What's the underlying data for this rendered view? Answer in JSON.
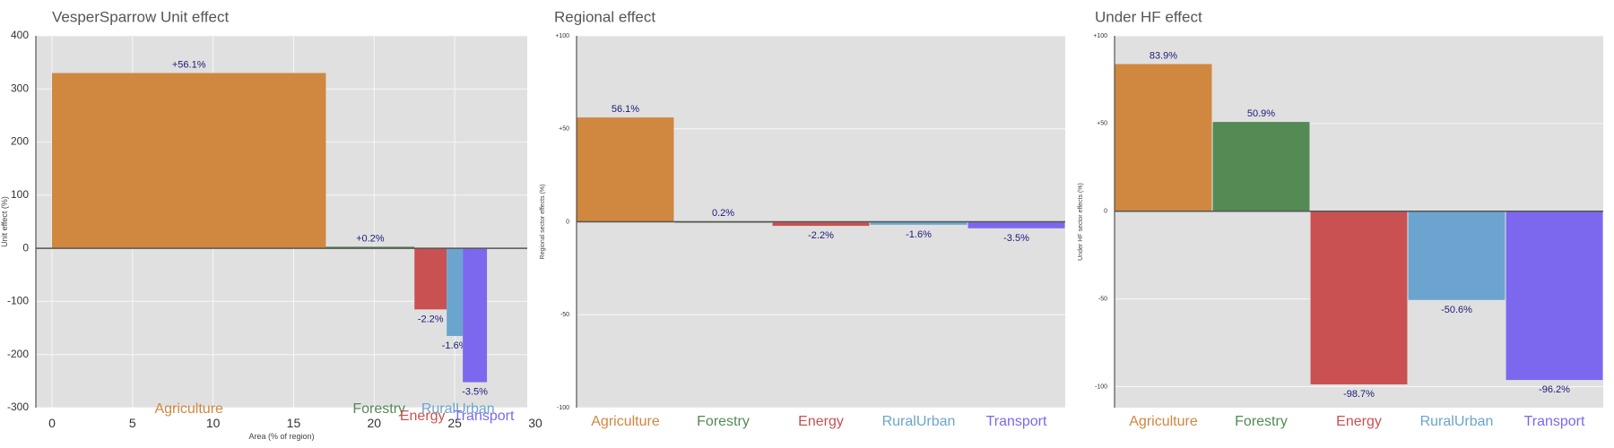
{
  "colors": {
    "Agriculture": "#D0873F",
    "Forestry": "#548A54",
    "Energy": "#C95151",
    "RuralUrban": "#6BA5CF",
    "Transport": "#7B68EE",
    "panel": "#E0E0E0",
    "grid": "#F7F7F7",
    "zero_line": "#555555"
  },
  "chart_data": [
    {
      "type": "bar",
      "title": "VesperSparrow Unit effect",
      "xlabel": "Area (% of region)",
      "ylabel": "Unit effect (%)",
      "xlim": [
        -1,
        29.5
      ],
      "ylim": [
        -300,
        400
      ],
      "xticks": [
        0,
        5,
        10,
        15,
        20,
        25,
        30
      ],
      "yticks": [
        -300,
        -200,
        -100,
        0,
        100,
        200,
        300,
        400
      ],
      "categories": [
        "Agriculture",
        "Forestry",
        "Energy",
        "RuralUrban",
        "Transport"
      ],
      "bars": [
        {
          "category": "Agriculture",
          "x_start": 0,
          "x_end": 17,
          "value": 330,
          "label": "+56.1%"
        },
        {
          "category": "Forestry",
          "x_start": 17,
          "x_end": 22.5,
          "value": 3,
          "label": "+0.2%"
        },
        {
          "category": "Energy",
          "x_start": 22.5,
          "x_end": 24.5,
          "value": -115,
          "label": "-2.2%"
        },
        {
          "category": "RuralUrban",
          "x_start": 24.5,
          "x_end": 25.5,
          "value": -165,
          "label": "-1.6%"
        },
        {
          "category": "Transport",
          "x_start": 25.5,
          "x_end": 27,
          "value": -252,
          "label": "-3.5%"
        }
      ]
    },
    {
      "type": "bar",
      "title": "Regional effect",
      "xlabel": "",
      "ylabel": "Regional sector effects (%)",
      "ylim": [
        -100,
        100
      ],
      "yticks": [
        -100,
        -50,
        0,
        50,
        100
      ],
      "ytick_labels": [
        "-100",
        "-50",
        "0",
        "+50",
        "+100"
      ],
      "categories": [
        "Agriculture",
        "Forestry",
        "Energy",
        "RuralUrban",
        "Transport"
      ],
      "values": [
        56.1,
        0.2,
        -2.2,
        -1.6,
        -3.5
      ],
      "labels": [
        "56.1%",
        "0.2%",
        "-2.2%",
        "-1.6%",
        "-3.5%"
      ]
    },
    {
      "type": "bar",
      "title": "Under HF effect",
      "xlabel": "",
      "ylabel": "Under HF sector effects (%)",
      "ylim": [
        -112,
        100
      ],
      "yticks": [
        -100,
        -50,
        0,
        50,
        100
      ],
      "ytick_labels": [
        "-100",
        "-50",
        "0",
        "+50",
        "+100"
      ],
      "categories": [
        "Agriculture",
        "Forestry",
        "Energy",
        "RuralUrban",
        "Transport"
      ],
      "values": [
        83.9,
        50.9,
        -98.7,
        -50.6,
        -96.2
      ],
      "labels": [
        "83.9%",
        "50.9%",
        "-98.7%",
        "-50.6%",
        "-96.2%"
      ]
    }
  ]
}
